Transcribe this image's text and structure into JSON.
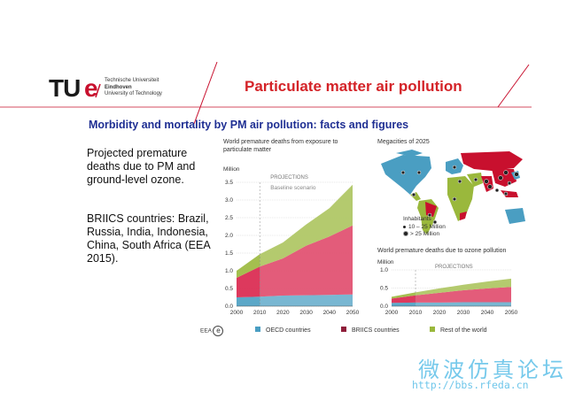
{
  "header": {
    "logo_tu": "TU",
    "logo_e": "e",
    "university_lines": [
      "Technische Universiteit",
      "Eindhoven",
      "University of Technology"
    ],
    "title": "Particulate matter air pollution"
  },
  "subtitle": "Morbidity and mortality by PM air pollution: facts and figures",
  "body": {
    "paragraph1": "Projected premature deaths due to PM and ground-level ozone.",
    "paragraph2": "BRIICS countries: Brazil, Russia, India, Indonesia, China, South Africa (EEA 2015)."
  },
  "chart_data": [
    {
      "type": "area",
      "title": "World premature deaths from exposure to particulate matter",
      "ylabel": "Million",
      "ylim": [
        0,
        3.5
      ],
      "yticks": [
        "0.0",
        "0.5",
        "1.0",
        "1.5",
        "2.0",
        "2.5",
        "3.0",
        "3.5"
      ],
      "xticks": [
        "2000",
        "2010",
        "2020",
        "2030",
        "2040",
        "2050"
      ],
      "x": [
        2000,
        2010,
        2020,
        2030,
        2040,
        2050
      ],
      "annotation": "PROJECTIONS",
      "annotation2": "Baseline scenario",
      "series": [
        {
          "name": "OECD countries",
          "values": [
            0.25,
            0.27,
            0.3,
            0.31,
            0.32,
            0.33
          ],
          "color": "#4a9ec2"
        },
        {
          "name": "BRIICS countries",
          "values": [
            0.55,
            0.85,
            1.05,
            1.4,
            1.65,
            1.95
          ],
          "color": "#d9234b"
        },
        {
          "name": "Rest of the world",
          "values": [
            0.2,
            0.35,
            0.45,
            0.6,
            0.8,
            1.15
          ],
          "color": "#9ab83c"
        }
      ]
    },
    {
      "type": "area",
      "title": "World premature deaths due to ozone pollution",
      "ylabel": "Million",
      "ylim": [
        0,
        1.0
      ],
      "yticks": [
        "0.0",
        "0.5",
        "1.0"
      ],
      "xticks": [
        "2000",
        "2010",
        "2020",
        "2030",
        "2040",
        "2050"
      ],
      "x": [
        2000,
        2010,
        2020,
        2030,
        2040,
        2050
      ],
      "annotation": "PROJECTIONS",
      "series": [
        {
          "name": "OECD countries",
          "values": [
            0.09,
            0.1,
            0.1,
            0.11,
            0.11,
            0.11
          ],
          "color": "#4a9ec2"
        },
        {
          "name": "BRIICS countries",
          "values": [
            0.12,
            0.2,
            0.27,
            0.33,
            0.38,
            0.42
          ],
          "color": "#d9234b"
        },
        {
          "name": "Rest of the world",
          "values": [
            0.05,
            0.08,
            0.12,
            0.15,
            0.19,
            0.23
          ],
          "color": "#9ab83c"
        }
      ]
    }
  ],
  "map": {
    "title": "Megacities of 2025",
    "legend_title": "Inhabitants",
    "legend_items": [
      "10 – 25 Million",
      "> 25 Million"
    ]
  },
  "legend": {
    "source": "EEA",
    "items": [
      "OECD countries",
      "BRIICS countries",
      "Rest of the world"
    ],
    "colors": [
      "#4a9ec2",
      "#8f1e3a",
      "#9ab83c"
    ]
  },
  "watermark": {
    "text": "微波仿真论坛",
    "url": "http://bbs.rfeda.cn"
  },
  "colors": {
    "accent": "#d42328",
    "subtitle": "#1f2f93"
  }
}
